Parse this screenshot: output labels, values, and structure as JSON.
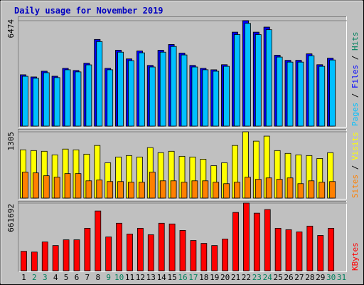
{
  "chart_data": {
    "type": "bar",
    "title": "Daily usage for November 2019",
    "categories": [
      1,
      2,
      3,
      4,
      5,
      6,
      7,
      8,
      9,
      10,
      11,
      12,
      13,
      14,
      15,
      16,
      17,
      18,
      19,
      20,
      21,
      22,
      23,
      24,
      25,
      26,
      27,
      28,
      29,
      30,
      31
    ],
    "weekend_days": [
      2,
      3,
      9,
      10,
      16,
      17,
      23,
      24,
      30,
      31
    ],
    "weekday_color": "#000000",
    "weekend_color": "#00805c",
    "legend_separator": " / ",
    "panels": [
      {
        "ylim": [
          0,
          6474
        ],
        "yticks": [
          6474
        ],
        "grid": true,
        "series": [
          {
            "name": "Hits",
            "color": "#00805c",
            "values": [
              3148,
              3015,
              3370,
              3060,
              3547,
              3414,
              3858,
              5321,
              3547,
              4656,
              4124,
              4612,
              3725,
              4656,
              5011,
              4479,
              3725,
              3547,
              3459,
              3769,
              5765,
              6474,
              5765,
              6075,
              4346,
              4035,
              4035,
              4434,
              3769,
              4168,
              null
            ]
          },
          {
            "name": "Files",
            "color": "#0000ff",
            "values": [
              3148,
              3015,
              3370,
              3060,
              3547,
              3414,
              3858,
              5321,
              3547,
              4656,
              4124,
              4612,
              3725,
              4656,
              5011,
              4479,
              3725,
              3547,
              3459,
              3769,
              5765,
              6474,
              5765,
              6075,
              4346,
              4035,
              4035,
              4434,
              3769,
              4168,
              null
            ]
          },
          {
            "name": "Pages",
            "color": "#00c0ff",
            "values": [
              3060,
              2940,
              3280,
              2980,
              3460,
              3330,
              3760,
              5190,
              3460,
              4540,
              4020,
              4500,
              3630,
              4540,
              4890,
              4370,
              3630,
              3460,
              3370,
              3670,
              5620,
              6310,
              5620,
              5920,
              4240,
              3930,
              3930,
              4320,
              3670,
              4060,
              null
            ]
          }
        ]
      },
      {
        "ylim": [
          0,
          1305
        ],
        "yticks": [
          1305
        ],
        "grid": true,
        "series": [
          {
            "name": "Visits",
            "color": "#ffff00",
            "values": [
              950,
              936,
              922,
              851,
              965,
              950,
              865,
              1036,
              695,
              809,
              837,
              809,
              993,
              894,
              922,
              823,
              809,
              766,
              638,
              695,
              1036,
              1305,
              1121,
              1220,
              936,
              880,
              851,
              837,
              780,
              894,
              null
            ]
          },
          {
            "name": "Sites",
            "color": "#ff8000",
            "values": [
              511,
              496,
              440,
              411,
              482,
              482,
              340,
              355,
              326,
              326,
              312,
              312,
              511,
              340,
              340,
              312,
              340,
              340,
              312,
              284,
              312,
              411,
              369,
              397,
              369,
              397,
              284,
              340,
              312,
              326,
              null
            ]
          }
        ]
      },
      {
        "ylim": [
          0,
          661692
        ],
        "yticks": [
          661692
        ],
        "grid": true,
        "series": [
          {
            "name": "KBytes",
            "color": "#ff0000",
            "values": [
              190057,
              183019,
              281568,
              246369,
              302687,
              302687,
              415321,
              584260,
              330846,
              464598,
              359005,
              415321,
              351964,
              464598,
              457559,
              394202,
              295649,
              267491,
              246369,
              309730,
              570181,
              661692,
              563154,
              598337,
              415321,
              401243,
              380120,
              436429,
              344926,
              415321,
              null
            ]
          }
        ]
      }
    ]
  }
}
